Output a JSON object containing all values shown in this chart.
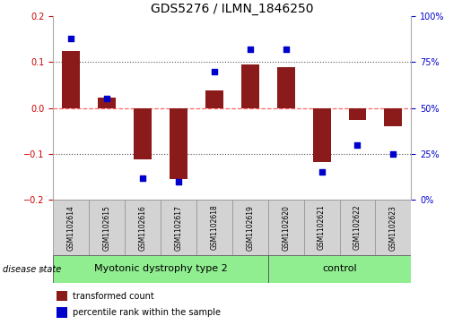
{
  "title": "GDS5276 / ILMN_1846250",
  "samples": [
    "GSM1102614",
    "GSM1102615",
    "GSM1102616",
    "GSM1102617",
    "GSM1102618",
    "GSM1102619",
    "GSM1102620",
    "GSM1102621",
    "GSM1102622",
    "GSM1102623"
  ],
  "red_bars": [
    0.125,
    0.022,
    -0.112,
    -0.155,
    0.038,
    0.095,
    0.09,
    -0.118,
    -0.025,
    -0.04
  ],
  "blue_dots": [
    88,
    55,
    12,
    10,
    70,
    82,
    82,
    15,
    30,
    25
  ],
  "ylim_left": [
    -0.2,
    0.2
  ],
  "ylim_right": [
    0,
    100
  ],
  "yticks_left": [
    -0.2,
    -0.1,
    0.0,
    0.1,
    0.2
  ],
  "yticks_right": [
    0,
    25,
    50,
    75,
    100
  ],
  "ytick_labels_right": [
    "0%",
    "25%",
    "50%",
    "75%",
    "100%"
  ],
  "disease_groups": [
    {
      "label": "Myotonic dystrophy type 2",
      "start": 0,
      "end": 5,
      "color": "#90EE90"
    },
    {
      "label": "control",
      "start": 6,
      "end": 9,
      "color": "#90EE90"
    }
  ],
  "bar_color": "#8B1A1A",
  "dot_color": "#0000CD",
  "label_box_color": "#D3D3D3",
  "legend_red_label": "transformed count",
  "legend_blue_label": "percentile rank within the sample",
  "disease_state_label": "disease state",
  "title_fontsize": 10,
  "tick_fontsize": 7,
  "sample_fontsize": 5.5,
  "disease_fontsize": 8,
  "legend_fontsize": 7
}
